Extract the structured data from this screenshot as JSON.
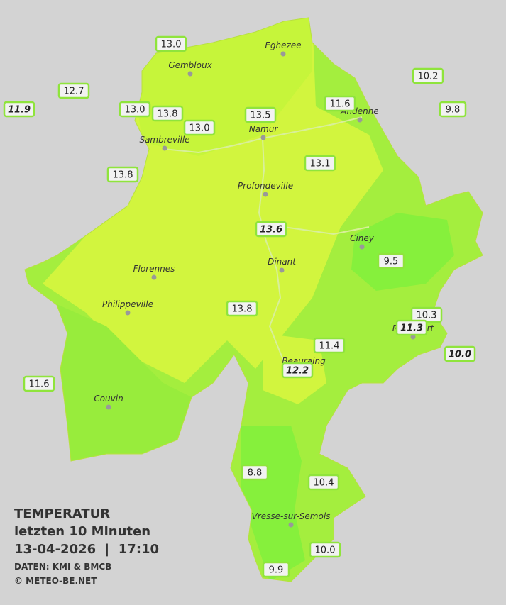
{
  "header": {
    "title": "TEMPERATUR",
    "subtitle": "letzten 10 Minuten",
    "datetime": "13-04-2026  |  17:10",
    "source": "DATEN: KMI & BMCB",
    "copyright": "© METEO-BE.NET"
  },
  "cities": [
    "Eghezee",
    "Gembloux",
    "Andenne",
    "Namur",
    "Sambreville",
    "Profondeville",
    "Ciney",
    "Dinant",
    "Florennes",
    "Philippeville",
    "Rochefort",
    "Beauraing",
    "Couvin",
    "Vresse-sur-Semois"
  ],
  "stations": [
    {
      "label": "13.0",
      "italic": false
    },
    {
      "label": "12.7",
      "italic": false
    },
    {
      "label": "11.9",
      "italic": true
    },
    {
      "label": "13.0",
      "italic": false
    },
    {
      "label": "13.8",
      "italic": false
    },
    {
      "label": "13.0",
      "italic": false
    },
    {
      "label": "13.5",
      "italic": false
    },
    {
      "label": "11.6",
      "italic": false
    },
    {
      "label": "10.2",
      "italic": false
    },
    {
      "label": "9.8",
      "italic": false
    },
    {
      "label": "13.8",
      "italic": false
    },
    {
      "label": "13.1",
      "italic": false
    },
    {
      "label": "13.6",
      "italic": true
    },
    {
      "label": "9.5",
      "italic": false
    },
    {
      "label": "13.8",
      "italic": false
    },
    {
      "label": "10.3",
      "italic": false
    },
    {
      "label": "11.3",
      "italic": true
    },
    {
      "label": "11.4",
      "italic": false
    },
    {
      "label": "10.0",
      "italic": true
    },
    {
      "label": "12.2",
      "italic": true
    },
    {
      "label": "11.6",
      "italic": false
    },
    {
      "label": "8.8",
      "italic": false
    },
    {
      "label": "10.4",
      "italic": false
    },
    {
      "label": "10.0",
      "italic": false
    },
    {
      "label": "9.9",
      "italic": false
    }
  ]
}
